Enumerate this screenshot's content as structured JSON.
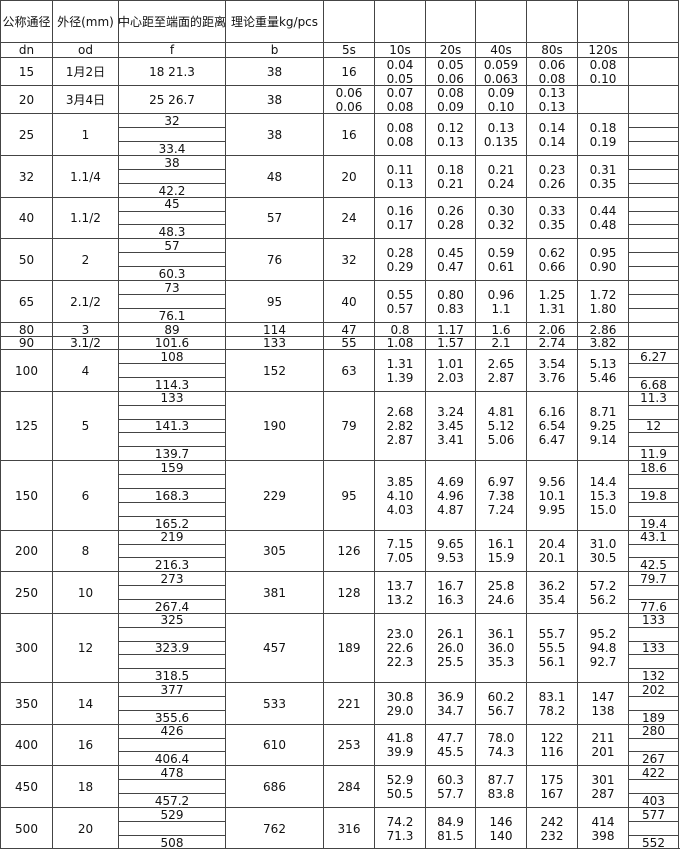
{
  "header": {
    "row1": [
      "公称通径",
      "外径(mm)",
      "中心距至端面的距离",
      "理论重量kg/pcs",
      "",
      "",
      "",
      "",
      "",
      "",
      ""
    ],
    "row2": [
      "dn",
      "od",
      "f",
      "b",
      "5s",
      "10s",
      "20s",
      "40s",
      "80s",
      "120s",
      ""
    ]
  },
  "rows": [
    {
      "dn": "15",
      "od": "1月2日",
      "f": [
        "18 21.3"
      ],
      "b": "38",
      "s5": [
        "16"
      ],
      "w": [
        [
          "0.04",
          "0.05"
        ],
        [
          "0.05",
          "0.06"
        ],
        [
          "0.059",
          "0.063"
        ],
        [
          "0.06",
          "0.08"
        ],
        [
          "0.08",
          "0.10"
        ]
      ],
      "last": [
        ""
      ]
    },
    {
      "dn": "20",
      "od": "3月4日",
      "f": [
        "25 26.7"
      ],
      "b": "38",
      "s5": [
        "0.06",
        "0.06"
      ],
      "w": [
        [
          "0.07",
          "0.08"
        ],
        [
          "0.08",
          "0.09"
        ],
        [
          "0.09",
          "0.10"
        ],
        [
          "0.13",
          "0.13"
        ],
        []
      ],
      "last": [
        ""
      ]
    },
    {
      "dn": "25",
      "od": "1",
      "f": [
        "32",
        "",
        "33.4"
      ],
      "b": "38",
      "s5": [
        "16"
      ],
      "w": [
        [
          "0.08",
          "0.08"
        ],
        [
          "0.12",
          "0.13"
        ],
        [
          "0.13",
          "0.135"
        ],
        [
          "0.14",
          "0.14"
        ],
        [
          "0.18",
          "0.19"
        ]
      ],
      "last": [
        "",
        "",
        ""
      ]
    },
    {
      "dn": "32",
      "od": "1.1/4",
      "f": [
        "38",
        "",
        "42.2"
      ],
      "b": "48",
      "s5": [
        "20"
      ],
      "w": [
        [
          "0.11",
          "0.13"
        ],
        [
          "0.18",
          "0.21"
        ],
        [
          "0.21",
          "0.24"
        ],
        [
          "0.23",
          "0.26"
        ],
        [
          "0.31",
          "0.35"
        ]
      ],
      "last": [
        "",
        "",
        ""
      ]
    },
    {
      "dn": "40",
      "od": "1.1/2",
      "f": [
        "45",
        "",
        "48.3"
      ],
      "b": "57",
      "s5": [
        "24"
      ],
      "w": [
        [
          "0.16",
          "0.17"
        ],
        [
          "0.26",
          "0.28"
        ],
        [
          "0.30",
          "0.32"
        ],
        [
          "0.33",
          "0.35"
        ],
        [
          "0.44",
          "0.48"
        ]
      ],
      "last": [
        "",
        "",
        ""
      ]
    },
    {
      "dn": "50",
      "od": "2",
      "f": [
        "57",
        "",
        "60.3"
      ],
      "b": "76",
      "s5": [
        "32"
      ],
      "w": [
        [
          "0.28",
          "0.29"
        ],
        [
          "0.45",
          "0.47"
        ],
        [
          "0.59",
          "0.61"
        ],
        [
          "0.62",
          "0.66"
        ],
        [
          "0.95",
          "0.90"
        ]
      ],
      "last": [
        "",
        "",
        ""
      ]
    },
    {
      "dn": "65",
      "od": "2.1/2",
      "f": [
        "73",
        "",
        "76.1"
      ],
      "b": "95",
      "s5": [
        "40"
      ],
      "w": [
        [
          "0.55",
          "0.57"
        ],
        [
          "0.80",
          "0.83"
        ],
        [
          "0.96",
          "1.1"
        ],
        [
          "1.25",
          "1.31"
        ],
        [
          "1.72",
          "1.80"
        ]
      ],
      "last": [
        "",
        "",
        ""
      ]
    },
    {
      "dn": "80",
      "od": "3",
      "f": [
        "89"
      ],
      "b": "114",
      "s5": [
        "47"
      ],
      "w": [
        [
          "0.8"
        ],
        [
          "1.17"
        ],
        [
          "1.6"
        ],
        [
          "2.06"
        ],
        [
          "2.86"
        ]
      ],
      "last": [
        ""
      ]
    },
    {
      "dn": "90",
      "od": "3.1/2",
      "f": [
        "101.6"
      ],
      "b": "133",
      "s5": [
        "55"
      ],
      "w": [
        [
          "1.08"
        ],
        [
          "1.57"
        ],
        [
          "2.1"
        ],
        [
          "2.74"
        ],
        [
          "3.82"
        ]
      ],
      "last": [
        ""
      ]
    },
    {
      "dn": "100",
      "od": "4",
      "f": [
        "108",
        "",
        "114.3"
      ],
      "b": "152",
      "s5": [
        "63"
      ],
      "w": [
        [
          "1.31",
          "1.39"
        ],
        [
          "1.01",
          "2.03"
        ],
        [
          "2.65",
          "2.87"
        ],
        [
          "3.54",
          "3.76"
        ],
        [
          "5.13",
          "5.46"
        ]
      ],
      "last": [
        "6.27",
        "",
        "6.68"
      ]
    },
    {
      "dn": "125",
      "od": "5",
      "f": [
        "133",
        "",
        "141.3",
        "",
        "139.7"
      ],
      "b": "190",
      "s5": [
        "79"
      ],
      "w": [
        [
          "2.68",
          "2.82",
          "2.87"
        ],
        [
          "3.24",
          "3.45",
          "3.41"
        ],
        [
          "4.81",
          "5.12",
          "5.06"
        ],
        [
          "6.16",
          "6.54",
          "6.47"
        ],
        [
          "8.71",
          "9.25",
          "9.14"
        ]
      ],
      "last": [
        "11.3",
        "",
        "12",
        "",
        "11.9"
      ]
    },
    {
      "dn": "150",
      "od": "6",
      "f": [
        "159",
        "",
        "168.3",
        "",
        "165.2"
      ],
      "b": "229",
      "s5": [
        "95"
      ],
      "w": [
        [
          "3.85",
          "4.10",
          "4.03"
        ],
        [
          "4.69",
          "4.96",
          "4.87"
        ],
        [
          "6.97",
          "7.38",
          "7.24"
        ],
        [
          "9.56",
          "10.1",
          "9.95"
        ],
        [
          "14.4",
          "15.3",
          "15.0"
        ]
      ],
      "last": [
        "18.6",
        "",
        "19.8",
        "",
        "19.4"
      ]
    },
    {
      "dn": "200",
      "od": "8",
      "f": [
        "219",
        "",
        "216.3"
      ],
      "b": "305",
      "s5": [
        "126"
      ],
      "w": [
        [
          "7.15",
          "7.05"
        ],
        [
          "9.65",
          "9.53"
        ],
        [
          "16.1",
          "15.9"
        ],
        [
          "20.4",
          "20.1"
        ],
        [
          "31.0",
          "30.5"
        ]
      ],
      "last": [
        "43.1",
        "",
        "42.5"
      ]
    },
    {
      "dn": "250",
      "od": "10",
      "f": [
        "273",
        "",
        "267.4"
      ],
      "b": "381",
      "s5": [
        "128"
      ],
      "w": [
        [
          "13.7",
          "13.2"
        ],
        [
          "16.7",
          "16.3"
        ],
        [
          "25.8",
          "24.6"
        ],
        [
          "36.2",
          "35.4"
        ],
        [
          "57.2",
          "56.2"
        ]
      ],
      "last": [
        "79.7",
        "",
        "77.6"
      ]
    },
    {
      "dn": "300",
      "od": "12",
      "f": [
        "325",
        "",
        "323.9",
        "",
        "318.5"
      ],
      "b": "457",
      "s5": [
        "189"
      ],
      "w": [
        [
          "23.0",
          "22.6",
          "22.3"
        ],
        [
          "26.1",
          "26.0",
          "25.5"
        ],
        [
          "36.1",
          "36.0",
          "35.3"
        ],
        [
          "55.7",
          "55.5",
          "56.1"
        ],
        [
          "95.2",
          "94.8",
          "92.7"
        ]
      ],
      "last": [
        "133",
        "",
        "133",
        "",
        "132"
      ]
    },
    {
      "dn": "350",
      "od": "14",
      "f": [
        "377",
        "",
        "355.6"
      ],
      "b": "533",
      "s5": [
        "221"
      ],
      "w": [
        [
          "30.8",
          "29.0"
        ],
        [
          "36.9",
          "34.7"
        ],
        [
          "60.2",
          "56.7"
        ],
        [
          "83.1",
          "78.2"
        ],
        [
          "147",
          "138"
        ]
      ],
      "last": [
        "202",
        "",
        "189"
      ]
    },
    {
      "dn": "400",
      "od": "16",
      "f": [
        "426",
        "",
        "406.4"
      ],
      "b": "610",
      "s5": [
        "253"
      ],
      "w": [
        [
          "41.8",
          "39.9"
        ],
        [
          "47.7",
          "45.5"
        ],
        [
          "78.0",
          "74.3"
        ],
        [
          "122",
          "116"
        ],
        [
          "211",
          "201"
        ]
      ],
      "last": [
        "280",
        "",
        "267"
      ]
    },
    {
      "dn": "450",
      "od": "18",
      "f": [
        "478",
        "",
        "457.2"
      ],
      "b": "686",
      "s5": [
        "284"
      ],
      "w": [
        [
          "52.9",
          "50.5"
        ],
        [
          "60.3",
          "57.7"
        ],
        [
          "87.7",
          "83.8"
        ],
        [
          "175",
          "167"
        ],
        [
          "301",
          "287"
        ]
      ],
      "last": [
        "422",
        "",
        "403"
      ]
    },
    {
      "dn": "500",
      "od": "20",
      "f": [
        "529",
        "",
        "508"
      ],
      "b": "762",
      "s5": [
        "316"
      ],
      "w": [
        [
          "74.2",
          "71.3"
        ],
        [
          "84.9",
          "81.5"
        ],
        [
          "146",
          "140"
        ],
        [
          "242",
          "232"
        ],
        [
          "414",
          "398"
        ]
      ],
      "last": [
        "577",
        "",
        "552"
      ]
    }
  ]
}
